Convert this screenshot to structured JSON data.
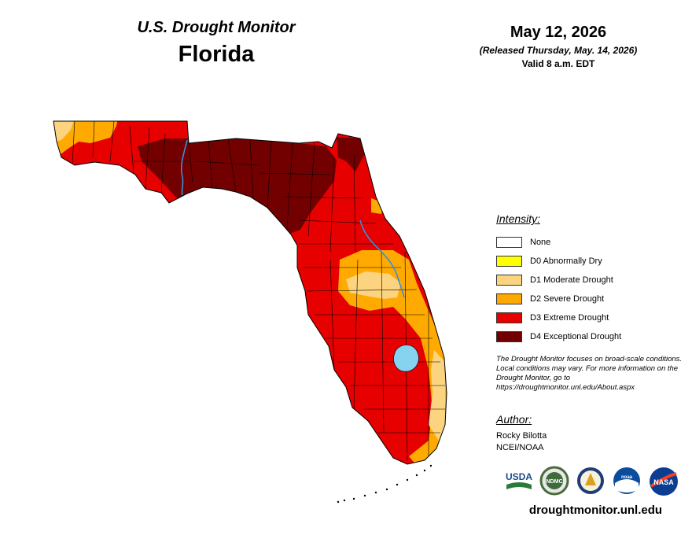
{
  "header": {
    "supertitle": "U.S. Drought Monitor",
    "title": "Florida",
    "date": "May 12, 2026",
    "release_note": "(Released Thursday, May. 14, 2026)",
    "valid_note": "Valid 8 a.m. EDT"
  },
  "legend": {
    "title": "Intensity:",
    "items": [
      {
        "label": "None",
        "color": "#ffffff"
      },
      {
        "label": "D0 Abnormally Dry",
        "color": "#ffff00"
      },
      {
        "label": "D1 Moderate Drought",
        "color": "#fcd37f"
      },
      {
        "label": "D2 Severe Drought",
        "color": "#ffaa00"
      },
      {
        "label": "D3 Extreme Drought",
        "color": "#e60000"
      },
      {
        "label": "D4 Exceptional Drought",
        "color": "#730000"
      }
    ]
  },
  "note": "The Drought Monitor focuses on broad-scale conditions. Local conditions may vary. For more information on the Drought Monitor, go to https://droughtmonitor.unl.edu/About.aspx",
  "author": {
    "title": "Author:",
    "name": "Rocky Bilotta",
    "org": "NCEI/NOAA"
  },
  "logos": [
    "USDA",
    "NDMC",
    "DOC",
    "noaa",
    "NASA"
  ],
  "website": "droughtmonitor.unl.edu",
  "colors": {
    "d4": "#730000",
    "d3": "#e60000",
    "d2": "#ffaa00",
    "d1": "#fcd37f",
    "water": "#86d3f0",
    "river": "#3a8fd9",
    "county_line": "#000000"
  }
}
